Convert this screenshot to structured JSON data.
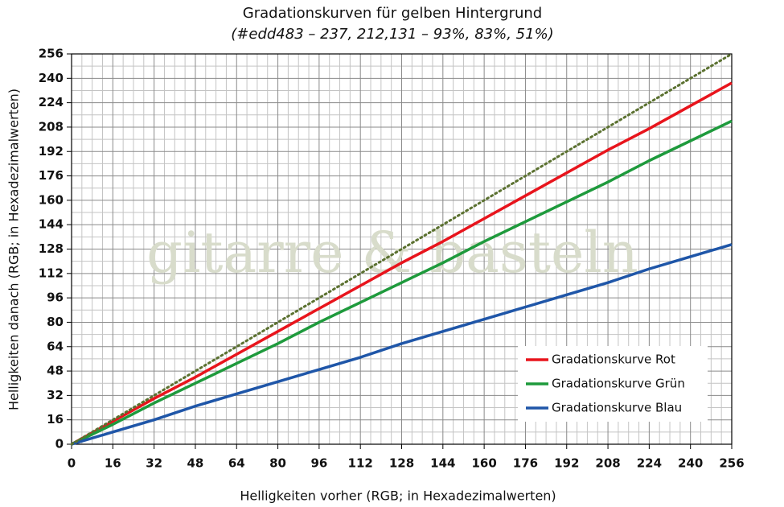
{
  "chart_data": {
    "type": "line",
    "title": "Gradationskurven für gelben Hintergrund",
    "subtitle": "(#edd483 – 237, 212,131 – 93%, 83%, 51%)",
    "x_label": "Helligkeiten vorher (RGB; in Hexadezimalwerten)",
    "y_label": "Helligkeiten danach (RGB; in Hexadezimalwerten)",
    "watermark": "gitarre & basteln",
    "x": [
      0,
      16,
      32,
      48,
      64,
      80,
      96,
      112,
      128,
      144,
      160,
      176,
      192,
      208,
      224,
      240,
      256
    ],
    "series": [
      {
        "name": "Gradationskurve Rot",
        "color": "#e8141c",
        "values": [
          0,
          15,
          30,
          44,
          59,
          74,
          89,
          104,
          119,
          133,
          148,
          163,
          178,
          193,
          207,
          222,
          237
        ]
      },
      {
        "name": "Gradationskurve Grün",
        "color": "#1e9a3c",
        "values": [
          0,
          13,
          27,
          40,
          53,
          66,
          80,
          93,
          106,
          119,
          133,
          146,
          159,
          172,
          186,
          199,
          212
        ]
      },
      {
        "name": "Gradationskurve Blau",
        "color": "#1f56a8",
        "values": [
          0,
          8,
          16,
          25,
          33,
          41,
          49,
          57,
          66,
          74,
          82,
          90,
          98,
          106,
          115,
          123,
          131
        ]
      },
      {
        "color": "#5b7130",
        "dash": "dotted",
        "values": [
          0,
          16,
          32,
          48,
          64,
          80,
          96,
          112,
          128,
          144,
          160,
          176,
          192,
          208,
          224,
          240,
          256
        ]
      }
    ],
    "xlim": [
      0,
      256
    ],
    "ylim": [
      0,
      256
    ],
    "xticks": [
      0,
      16,
      32,
      48,
      64,
      80,
      96,
      112,
      128,
      144,
      160,
      176,
      192,
      208,
      224,
      240,
      256
    ],
    "yticks": [
      0,
      16,
      32,
      48,
      64,
      80,
      96,
      112,
      128,
      144,
      160,
      176,
      192,
      208,
      224,
      240,
      256
    ],
    "grid": true,
    "legend": "lower right"
  }
}
